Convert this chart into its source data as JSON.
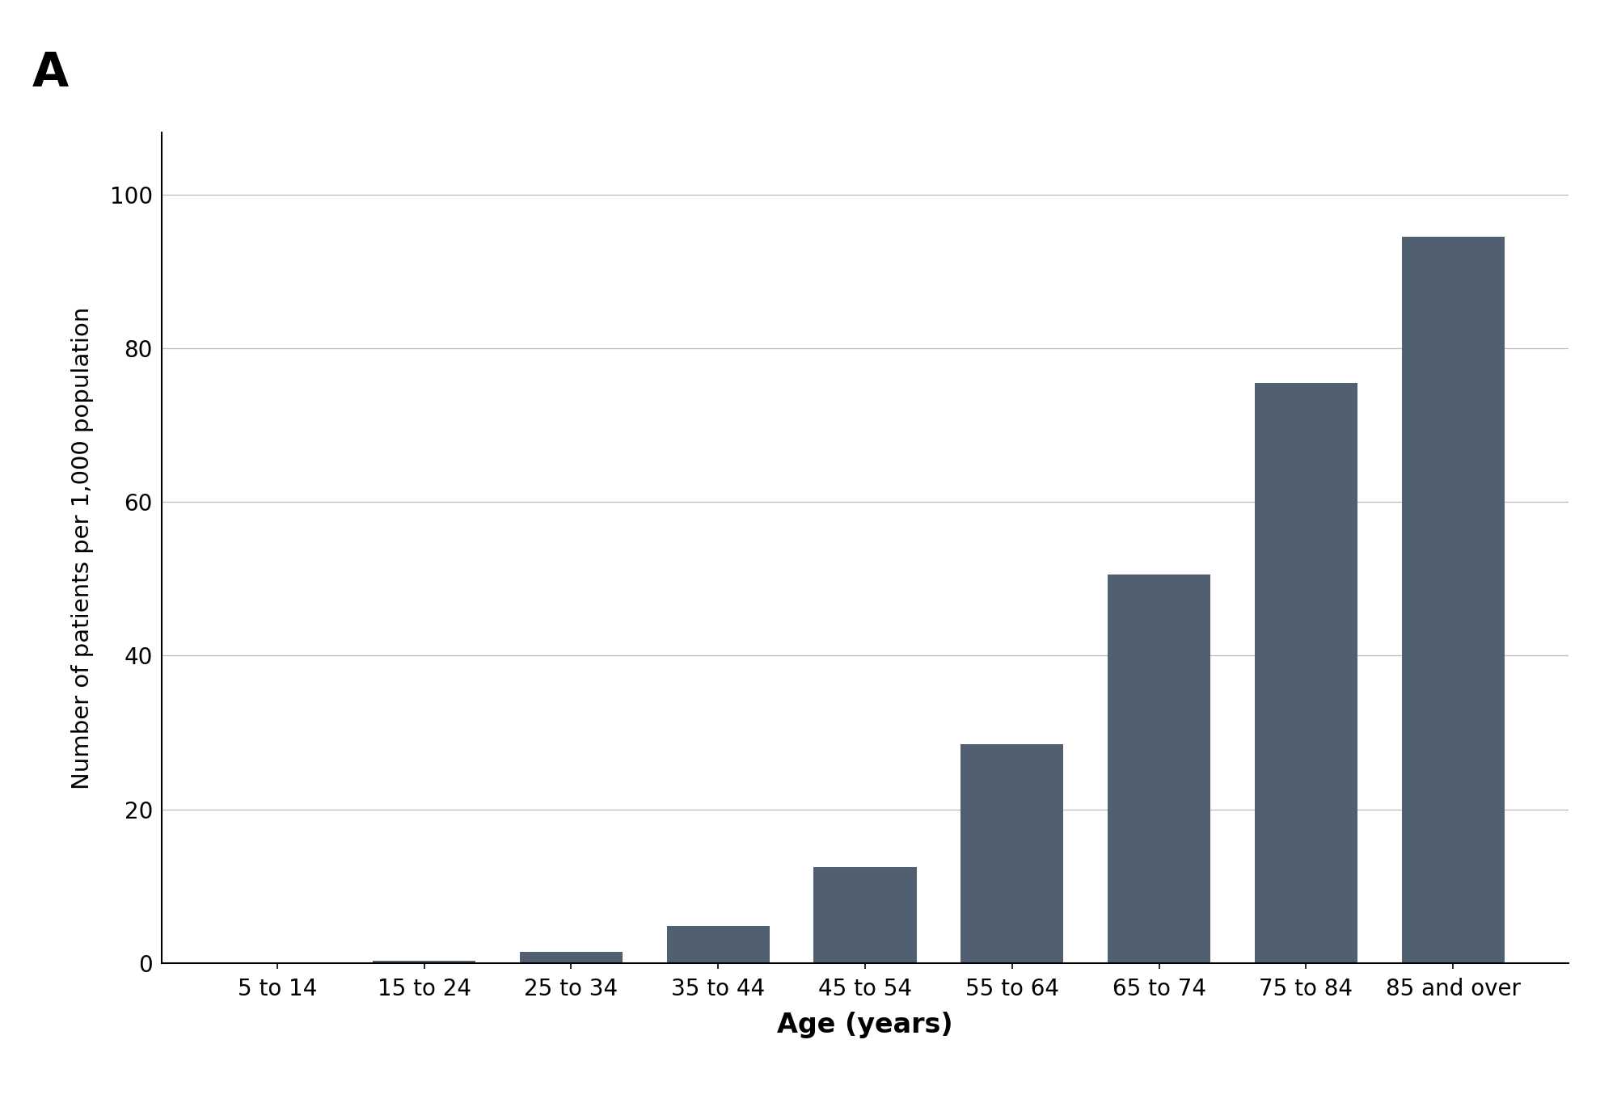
{
  "categories": [
    "5 to 14",
    "15 to 24",
    "25 to 34",
    "35 to 44",
    "45 to 54",
    "55 to 64",
    "65 to 74",
    "75 to 84",
    "85 and over"
  ],
  "values": [
    0.0,
    0.3,
    1.5,
    4.8,
    12.5,
    28.5,
    50.5,
    75.5,
    94.5
  ],
  "bar_color": "#506070",
  "ylabel": "Number of patients per 1,000 population",
  "xlabel": "Age (years)",
  "panel_label": "A",
  "ylim": [
    0,
    108
  ],
  "yticks": [
    0,
    20,
    40,
    60,
    80,
    100
  ],
  "background_color": "#ffffff",
  "grid_color": "#bbbbbb",
  "bar_width": 0.7,
  "panel_fontsize": 42,
  "ylabel_fontsize": 21,
  "xlabel_fontsize": 24,
  "tick_fontsize": 20
}
